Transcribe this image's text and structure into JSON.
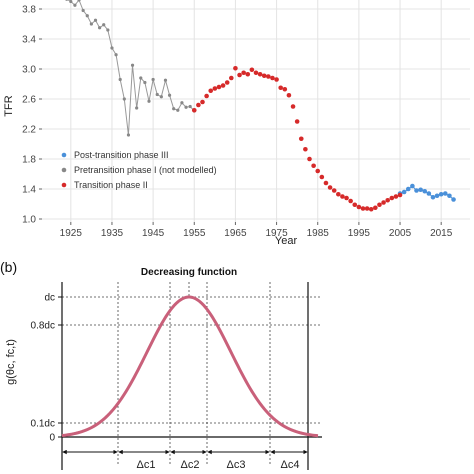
{
  "chart_data": [
    {
      "type": "scatter",
      "xlabel": "Year",
      "ylabel": "TFR",
      "xlim": [
        1918,
        2022
      ],
      "ylim": [
        0.96,
        3.92
      ],
      "x_ticks": [
        "1925",
        "1935",
        "1945",
        "1955",
        "1965",
        "1975",
        "1985",
        "1995",
        "2005",
        "2015"
      ],
      "y_ticks": [
        "1.0",
        "1.4",
        "1.8",
        "2.2",
        "2.6",
        "3.0",
        "3.4",
        "3.8"
      ],
      "grid": true,
      "legend": "bottom-left",
      "series": [
        {
          "name": "Post-transition phase III",
          "color": "#4a90d9",
          "connected": true,
          "x": [
            2005,
            2006,
            2007,
            2008,
            2009,
            2010,
            2011,
            2012,
            2013,
            2014,
            2015,
            2016,
            2017,
            2018
          ],
          "y": [
            1.34,
            1.36,
            1.4,
            1.44,
            1.38,
            1.39,
            1.37,
            1.34,
            1.29,
            1.31,
            1.33,
            1.34,
            1.31,
            1.26
          ]
        },
        {
          "name": "Pretransition phase I (not modelled)",
          "color": "#888888",
          "connected": true,
          "x": [
            1922,
            1923,
            1924,
            1925,
            1926,
            1927,
            1928,
            1929,
            1930,
            1931,
            1932,
            1933,
            1934,
            1935,
            1936,
            1937,
            1938,
            1939,
            1940,
            1941,
            1942,
            1943,
            1944,
            1945,
            1946,
            1947,
            1948,
            1949,
            1950,
            1951,
            1952,
            1953,
            1954,
            1955
          ],
          "y": [
            4.05,
            3.98,
            3.93,
            3.9,
            3.85,
            3.92,
            3.78,
            3.71,
            3.6,
            3.65,
            3.55,
            3.59,
            3.52,
            3.28,
            3.19,
            2.86,
            2.6,
            2.12,
            3.05,
            2.48,
            2.88,
            2.82,
            2.57,
            2.86,
            2.66,
            2.63,
            2.85,
            2.65,
            2.47,
            2.45,
            2.55,
            2.49,
            2.5,
            2.44
          ]
        },
        {
          "name": "Transition phase II",
          "color": "#d62a2a",
          "connected": false,
          "x": [
            1955,
            1956,
            1957,
            1958,
            1959,
            1960,
            1961,
            1962,
            1963,
            1964,
            1965,
            1966,
            1967,
            1968,
            1969,
            1970,
            1971,
            1972,
            1973,
            1974,
            1975,
            1976,
            1977,
            1978,
            1979,
            1980,
            1981,
            1982,
            1983,
            1984,
            1985,
            1986,
            1987,
            1988,
            1989,
            1990,
            1991,
            1992,
            1993,
            1994,
            1995,
            1996,
            1997,
            1998,
            1999,
            2000,
            2001,
            2002,
            2003,
            2004,
            2005
          ],
          "y": [
            2.45,
            2.52,
            2.56,
            2.64,
            2.71,
            2.74,
            2.76,
            2.78,
            2.82,
            2.88,
            3.01,
            2.92,
            2.95,
            2.93,
            2.99,
            2.95,
            2.93,
            2.91,
            2.9,
            2.88,
            2.86,
            2.75,
            2.73,
            2.65,
            2.5,
            2.3,
            2.07,
            1.93,
            1.8,
            1.71,
            1.64,
            1.56,
            1.48,
            1.42,
            1.38,
            1.33,
            1.3,
            1.28,
            1.24,
            1.19,
            1.16,
            1.14,
            1.14,
            1.13,
            1.15,
            1.19,
            1.22,
            1.25,
            1.28,
            1.3,
            1.32
          ]
        }
      ]
    },
    {
      "type": "line",
      "panel_label": "(b)",
      "title": "Decreasing function",
      "ylabel": "g(θc, fc,t)",
      "y_ticks": [
        "dc",
        "0.8dc",
        "0.1dc",
        "0"
      ],
      "y_tick_values": [
        1.0,
        0.8,
        0.1,
        0.0
      ],
      "ylim": [
        0,
        1.1
      ],
      "x_intervals": [
        "Δc1",
        "Δc2",
        "Δc3",
        "Δc4"
      ],
      "curve": "gaussian",
      "peak": 1.0,
      "color": "#c9607a"
    }
  ]
}
